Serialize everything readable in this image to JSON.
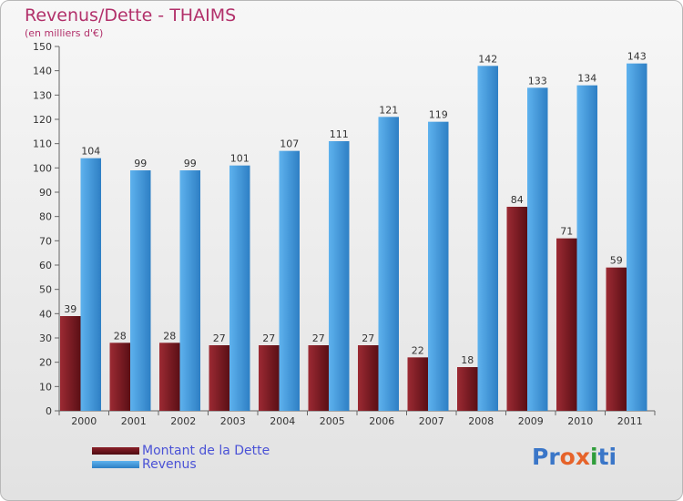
{
  "title": "Revenus/Dette - THAIMS",
  "subtitle": "(en milliers d'€)",
  "colors": {
    "dette": "#7b1a22",
    "revenus": "#4aa0e2",
    "title": "#b2306a",
    "legend_text": "#4a52d6"
  },
  "legend": [
    {
      "label": "Montant de la Dette",
      "color": "#7b1a22"
    },
    {
      "label": "Revenus",
      "color": "#4aa0e2"
    }
  ],
  "logo": {
    "text": "Proxiti",
    "letter_colors": [
      "#3a76c8",
      "#3a76c8",
      "#e6632a",
      "#e6632a",
      "#2f9d3a",
      "#3a76c8",
      "#3a76c8"
    ]
  },
  "chart_data": {
    "type": "bar",
    "categories": [
      "2000",
      "2001",
      "2002",
      "2003",
      "2004",
      "2005",
      "2006",
      "2007",
      "2008",
      "2009",
      "2010",
      "2011"
    ],
    "series": [
      {
        "name": "Montant de la Dette",
        "values": [
          39,
          28,
          28,
          27,
          27,
          27,
          27,
          22,
          18,
          84,
          71,
          59
        ]
      },
      {
        "name": "Revenus",
        "values": [
          104,
          99,
          99,
          101,
          107,
          111,
          121,
          119,
          142,
          133,
          134,
          143
        ]
      }
    ],
    "ylim": [
      0,
      150
    ],
    "yticks": [
      0,
      10,
      20,
      30,
      40,
      50,
      60,
      70,
      80,
      90,
      100,
      110,
      120,
      130,
      140,
      150
    ],
    "grid": false,
    "legend_position": "bottom-left"
  }
}
